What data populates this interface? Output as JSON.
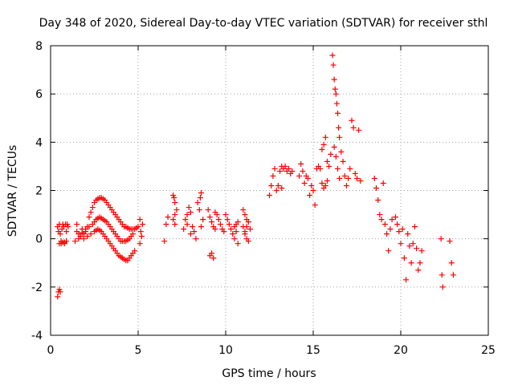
{
  "chart_data": {
    "type": "scatter",
    "title": "Day 348 of 2020, Sidereal Day-to-day VTEC variation (SDTVAR) for receiver sthl",
    "xlabel": "GPS time / hours",
    "ylabel": "SDTVAR / TECUs",
    "xlim": [
      0,
      25
    ],
    "ylim": [
      -4,
      8
    ],
    "xticks": [
      "0",
      "5",
      "10",
      "15",
      "20",
      "25"
    ],
    "yticks": [
      "-4",
      "-2",
      "0",
      "2",
      "4",
      "6",
      "8"
    ],
    "grid": true,
    "marker": "plus",
    "color": "#ff0000",
    "series": [
      {
        "name": "SDTVAR",
        "points": [
          [
            0.4,
            0.5
          ],
          [
            0.45,
            0.3
          ],
          [
            0.5,
            0.6
          ],
          [
            0.55,
            0.2
          ],
          [
            0.6,
            -0.1
          ],
          [
            0.65,
            0.4
          ],
          [
            0.7,
            0.6
          ],
          [
            0.75,
            0.5
          ],
          [
            0.8,
            -0.2
          ],
          [
            0.85,
            0.6
          ],
          [
            0.9,
            0.3
          ],
          [
            0.95,
            0.6
          ],
          [
            1.0,
            0.5
          ],
          [
            0.5,
            -0.2
          ],
          [
            0.6,
            -0.2
          ],
          [
            0.7,
            -0.15
          ],
          [
            0.8,
            -0.15
          ],
          [
            0.9,
            -0.1
          ],
          [
            0.4,
            -2.4
          ],
          [
            0.45,
            -2.2
          ],
          [
            0.5,
            -2.1
          ],
          [
            0.55,
            -2.2
          ],
          [
            1.4,
            -0.1
          ],
          [
            1.5,
            0.3
          ],
          [
            1.5,
            0.6
          ],
          [
            1.6,
            0.0
          ],
          [
            1.7,
            0.1
          ],
          [
            1.8,
            0.4
          ],
          [
            1.9,
            0.2
          ],
          [
            2.0,
            0.3
          ],
          [
            2.1,
            0.5
          ],
          [
            2.2,
            0.9
          ],
          [
            2.3,
            1.1
          ],
          [
            2.4,
            1.3
          ],
          [
            2.5,
            1.5
          ],
          [
            2.6,
            1.6
          ],
          [
            2.7,
            1.65
          ],
          [
            2.8,
            1.7
          ],
          [
            2.9,
            1.7
          ],
          [
            3.0,
            1.65
          ],
          [
            3.1,
            1.6
          ],
          [
            3.2,
            1.5
          ],
          [
            3.3,
            1.4
          ],
          [
            3.4,
            1.3
          ],
          [
            3.5,
            1.2
          ],
          [
            3.6,
            1.1
          ],
          [
            3.7,
            1.0
          ],
          [
            3.8,
            0.9
          ],
          [
            3.9,
            0.8
          ],
          [
            4.0,
            0.7
          ],
          [
            4.1,
            0.6
          ],
          [
            4.2,
            0.5
          ],
          [
            4.3,
            0.5
          ],
          [
            4.4,
            0.45
          ],
          [
            4.5,
            0.4
          ],
          [
            4.6,
            0.4
          ],
          [
            4.7,
            0.4
          ],
          [
            4.8,
            0.4
          ],
          [
            4.9,
            0.45
          ],
          [
            5.0,
            0.5
          ],
          [
            1.6,
            0.2
          ],
          [
            1.8,
            0.25
          ],
          [
            2.0,
            0.4
          ],
          [
            2.2,
            0.5
          ],
          [
            2.4,
            0.6
          ],
          [
            2.5,
            0.7
          ],
          [
            2.6,
            0.8
          ],
          [
            2.7,
            0.85
          ],
          [
            2.8,
            0.9
          ],
          [
            2.9,
            0.85
          ],
          [
            3.0,
            0.8
          ],
          [
            3.1,
            0.75
          ],
          [
            3.2,
            0.7
          ],
          [
            3.3,
            0.6
          ],
          [
            3.4,
            0.5
          ],
          [
            3.5,
            0.4
          ],
          [
            3.6,
            0.3
          ],
          [
            3.7,
            0.2
          ],
          [
            3.8,
            0.1
          ],
          [
            3.9,
            0.0
          ],
          [
            4.0,
            -0.1
          ],
          [
            4.1,
            -0.1
          ],
          [
            4.2,
            -0.1
          ],
          [
            4.3,
            -0.1
          ],
          [
            4.4,
            -0.05
          ],
          [
            4.5,
            0.0
          ],
          [
            4.6,
            0.1
          ],
          [
            4.7,
            0.2
          ],
          [
            1.7,
            0.1
          ],
          [
            1.9,
            0.0
          ],
          [
            2.1,
            0.1
          ],
          [
            2.3,
            0.2
          ],
          [
            2.5,
            0.3
          ],
          [
            2.6,
            0.35
          ],
          [
            2.7,
            0.4
          ],
          [
            2.8,
            0.35
          ],
          [
            2.9,
            0.3
          ],
          [
            3.0,
            0.2
          ],
          [
            3.1,
            0.1
          ],
          [
            3.2,
            0.0
          ],
          [
            3.3,
            -0.1
          ],
          [
            3.4,
            -0.2
          ],
          [
            3.5,
            -0.3
          ],
          [
            3.6,
            -0.4
          ],
          [
            3.7,
            -0.5
          ],
          [
            3.8,
            -0.6
          ],
          [
            3.9,
            -0.7
          ],
          [
            4.0,
            -0.75
          ],
          [
            4.1,
            -0.8
          ],
          [
            4.2,
            -0.85
          ],
          [
            4.3,
            -0.9
          ],
          [
            4.4,
            -0.9
          ],
          [
            4.5,
            -0.8
          ],
          [
            4.6,
            -0.7
          ],
          [
            4.7,
            -0.6
          ],
          [
            4.8,
            -0.5
          ],
          [
            5.1,
            0.8
          ],
          [
            5.15,
            0.3
          ],
          [
            5.2,
            0.1
          ],
          [
            5.25,
            0.6
          ],
          [
            5.1,
            -0.2
          ],
          [
            6.5,
            -0.1
          ],
          [
            6.6,
            0.6
          ],
          [
            6.7,
            0.9
          ],
          [
            7.0,
            1.8
          ],
          [
            7.05,
            1.7
          ],
          [
            7.1,
            1.5
          ],
          [
            7.0,
            0.8
          ],
          [
            7.1,
            1.0
          ],
          [
            7.2,
            1.2
          ],
          [
            7.1,
            0.6
          ],
          [
            7.6,
            0.4
          ],
          [
            7.7,
            0.8
          ],
          [
            7.8,
            1.0
          ],
          [
            7.9,
            1.3
          ],
          [
            8.0,
            1.1
          ],
          [
            7.8,
            0.6
          ],
          [
            8.0,
            0.2
          ],
          [
            8.1,
            0.5
          ],
          [
            8.2,
            0.3
          ],
          [
            8.3,
            0.0
          ],
          [
            8.4,
            1.5
          ],
          [
            8.5,
            1.2
          ],
          [
            8.55,
            1.7
          ],
          [
            8.6,
            1.9
          ],
          [
            8.7,
            0.8
          ],
          [
            8.6,
            0.5
          ],
          [
            9.0,
            1.2
          ],
          [
            9.1,
            0.9
          ],
          [
            9.2,
            0.7
          ],
          [
            9.3,
            0.5
          ],
          [
            9.4,
            0.4
          ],
          [
            9.1,
            -0.7
          ],
          [
            9.2,
            -0.6
          ],
          [
            9.3,
            -0.8
          ],
          [
            9.4,
            1.1
          ],
          [
            9.5,
            1.0
          ],
          [
            9.6,
            0.8
          ],
          [
            9.7,
            0.6
          ],
          [
            9.8,
            0.4
          ],
          [
            9.9,
            0.3
          ],
          [
            10.0,
            1.0
          ],
          [
            10.1,
            0.8
          ],
          [
            10.2,
            0.6
          ],
          [
            10.3,
            0.4
          ],
          [
            10.4,
            0.2
          ],
          [
            10.5,
            0.0
          ],
          [
            10.6,
            0.3
          ],
          [
            10.7,
            -0.2
          ],
          [
            10.5,
            0.5
          ],
          [
            10.6,
            0.6
          ],
          [
            10.7,
            0.7
          ],
          [
            11.0,
            1.2
          ],
          [
            11.1,
            1.0
          ],
          [
            11.2,
            0.8
          ],
          [
            11.0,
            0.5
          ],
          [
            11.1,
            0.2
          ],
          [
            11.2,
            0.0
          ],
          [
            11.3,
            -0.1
          ],
          [
            11.1,
            0.3
          ],
          [
            11.2,
            0.5
          ],
          [
            11.3,
            0.7
          ],
          [
            11.4,
            0.4
          ],
          [
            12.5,
            1.8
          ],
          [
            12.6,
            2.2
          ],
          [
            12.7,
            2.6
          ],
          [
            12.8,
            2.9
          ],
          [
            12.9,
            2.0
          ],
          [
            13.0,
            2.2
          ],
          [
            13.1,
            2.8
          ],
          [
            13.2,
            3.0
          ],
          [
            13.3,
            2.9
          ],
          [
            13.4,
            3.0
          ],
          [
            13.5,
            2.8
          ],
          [
            13.2,
            2.1
          ],
          [
            13.6,
            2.9
          ],
          [
            13.7,
            2.7
          ],
          [
            13.8,
            2.8
          ],
          [
            14.2,
            2.6
          ],
          [
            14.3,
            3.1
          ],
          [
            14.4,
            2.8
          ],
          [
            14.5,
            2.3
          ],
          [
            14.6,
            2.6
          ],
          [
            14.7,
            2.5
          ],
          [
            14.8,
            1.8
          ],
          [
            14.9,
            2.2
          ],
          [
            15.0,
            2.0
          ],
          [
            15.1,
            1.4
          ],
          [
            15.2,
            2.9
          ],
          [
            15.3,
            3.0
          ],
          [
            15.4,
            2.9
          ],
          [
            15.5,
            2.3
          ],
          [
            15.6,
            2.1
          ],
          [
            15.7,
            2.2
          ],
          [
            15.8,
            2.4
          ],
          [
            15.5,
            3.7
          ],
          [
            15.6,
            3.9
          ],
          [
            15.7,
            4.2
          ],
          [
            15.8,
            3.2
          ],
          [
            15.9,
            3.0
          ],
          [
            16.0,
            3.5
          ],
          [
            16.1,
            7.6
          ],
          [
            16.15,
            7.2
          ],
          [
            16.2,
            6.6
          ],
          [
            16.25,
            6.2
          ],
          [
            16.3,
            6.0
          ],
          [
            16.35,
            5.6
          ],
          [
            16.4,
            5.2
          ],
          [
            16.45,
            4.6
          ],
          [
            16.5,
            4.2
          ],
          [
            16.2,
            3.8
          ],
          [
            16.3,
            3.4
          ],
          [
            16.4,
            2.9
          ],
          [
            16.5,
            2.5
          ],
          [
            16.6,
            3.6
          ],
          [
            16.7,
            3.2
          ],
          [
            16.8,
            2.6
          ],
          [
            16.9,
            2.2
          ],
          [
            17.0,
            2.5
          ],
          [
            17.1,
            2.9
          ],
          [
            17.2,
            4.9
          ],
          [
            17.3,
            4.6
          ],
          [
            17.4,
            2.7
          ],
          [
            17.5,
            2.5
          ],
          [
            17.6,
            4.5
          ],
          [
            17.7,
            2.4
          ],
          [
            18.5,
            2.5
          ],
          [
            18.6,
            2.1
          ],
          [
            18.7,
            1.6
          ],
          [
            18.8,
            1.0
          ],
          [
            18.9,
            0.8
          ],
          [
            19.0,
            2.3
          ],
          [
            19.1,
            0.6
          ],
          [
            19.2,
            0.2
          ],
          [
            19.3,
            -0.5
          ],
          [
            19.4,
            0.4
          ],
          [
            19.5,
            0.8
          ],
          [
            19.7,
            0.9
          ],
          [
            19.8,
            0.6
          ],
          [
            19.9,
            0.3
          ],
          [
            20.0,
            -0.2
          ],
          [
            20.1,
            0.4
          ],
          [
            20.2,
            -0.8
          ],
          [
            20.3,
            -1.7
          ],
          [
            20.4,
            0.2
          ],
          [
            20.5,
            -0.3
          ],
          [
            20.6,
            -1.0
          ],
          [
            20.7,
            -0.2
          ],
          [
            20.8,
            0.5
          ],
          [
            20.9,
            -0.4
          ],
          [
            21.0,
            -1.3
          ],
          [
            21.1,
            -1.0
          ],
          [
            21.2,
            -0.5
          ],
          [
            22.3,
            0.0
          ],
          [
            22.35,
            -1.5
          ],
          [
            22.4,
            -2.0
          ],
          [
            22.8,
            -0.1
          ],
          [
            22.9,
            -1.0
          ],
          [
            23.0,
            -1.5
          ]
        ]
      }
    ]
  }
}
